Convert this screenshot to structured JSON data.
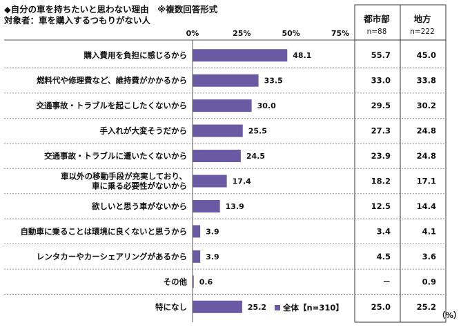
{
  "title": "◆自分の車を持ちたいと思わない理由　※複数回答形式",
  "subtitle": "対象者：車を購入するつもりがない人",
  "unit": "（%）",
  "columns": [
    {
      "header": "都市部",
      "n": "n=88"
    },
    {
      "header": "地方",
      "n": "n=222"
    }
  ],
  "legend": {
    "label": "全体【n=310】",
    "color": "#6a5aa3"
  },
  "chart_data": {
    "type": "bar",
    "orientation": "horizontal",
    "xlim": [
      0,
      75
    ],
    "ticks": [
      0,
      25,
      50,
      75
    ],
    "tick_labels": [
      "0%",
      "25%",
      "50%",
      "75%"
    ],
    "bar_color": "#6a5aa3",
    "categories": [
      [
        "購入費用を負担に感じるから"
      ],
      [
        "燃料代や修理費など、維持費がかかるから"
      ],
      [
        "交通事故・トラブルを起こしたくないから"
      ],
      [
        "手入れが大変そうだから"
      ],
      [
        "交通事故・トラブルに遭いたくないから"
      ],
      [
        "車以外の移動手段が充実しており、",
        "車に乗る必要性がないから"
      ],
      [
        "欲しいと思う車がないから"
      ],
      [
        "自動車に乗ることは環境に良くないと思うから"
      ],
      [
        "レンタカーやカーシェアリングがあるから"
      ],
      [
        "その他"
      ],
      [
        "特になし"
      ]
    ],
    "series": [
      {
        "name": "全体【n=310】",
        "values": [
          48.1,
          33.5,
          30.0,
          25.5,
          24.5,
          17.4,
          13.9,
          3.9,
          3.9,
          0.6,
          25.2
        ],
        "labels": [
          "48.1",
          "33.5",
          "30.0",
          "25.5",
          "24.5",
          "17.4",
          "13.9",
          "3.9",
          "3.9",
          "0.6",
          "25.2"
        ]
      }
    ],
    "table": {
      "都市部": [
        "55.7",
        "33.0",
        "29.5",
        "27.3",
        "23.9",
        "18.2",
        "12.5",
        "3.4",
        "4.5",
        "－",
        "25.0"
      ],
      "地方": [
        "45.0",
        "33.8",
        "30.2",
        "24.8",
        "24.8",
        "17.1",
        "14.4",
        "4.1",
        "3.6",
        "0.9",
        "25.2"
      ]
    }
  }
}
